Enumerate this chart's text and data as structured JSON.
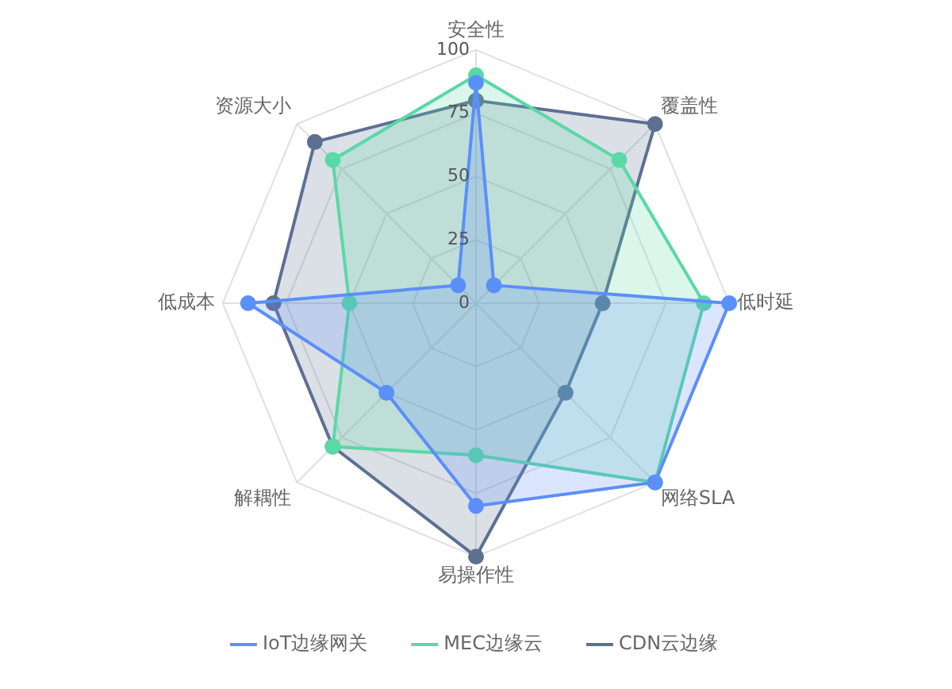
{
  "chart_data": {
    "type": "radar",
    "categories": [
      "安全性",
      "覆盖性",
      "低时延",
      "网络SLA",
      "易操作性",
      "解耦性",
      "低成本",
      "资源大小"
    ],
    "series": [
      {
        "name": "IoT边缘网关",
        "color": "#5b8ff9",
        "values": [
          87,
          10,
          100,
          100,
          80,
          50,
          90,
          10
        ]
      },
      {
        "name": "MEC边缘云",
        "color": "#5ad8a6",
        "values": [
          90,
          80,
          90,
          100,
          60,
          80,
          50,
          80
        ]
      },
      {
        "name": "CDN云边缘",
        "color": "#5d7092",
        "values": [
          80,
          100,
          50,
          50,
          100,
          80,
          80,
          90
        ]
      }
    ],
    "ylim": [
      0,
      100
    ],
    "yticks": [
      0,
      25,
      50,
      75,
      100
    ],
    "grid": true,
    "legend": "bottom",
    "marker": "circle"
  }
}
